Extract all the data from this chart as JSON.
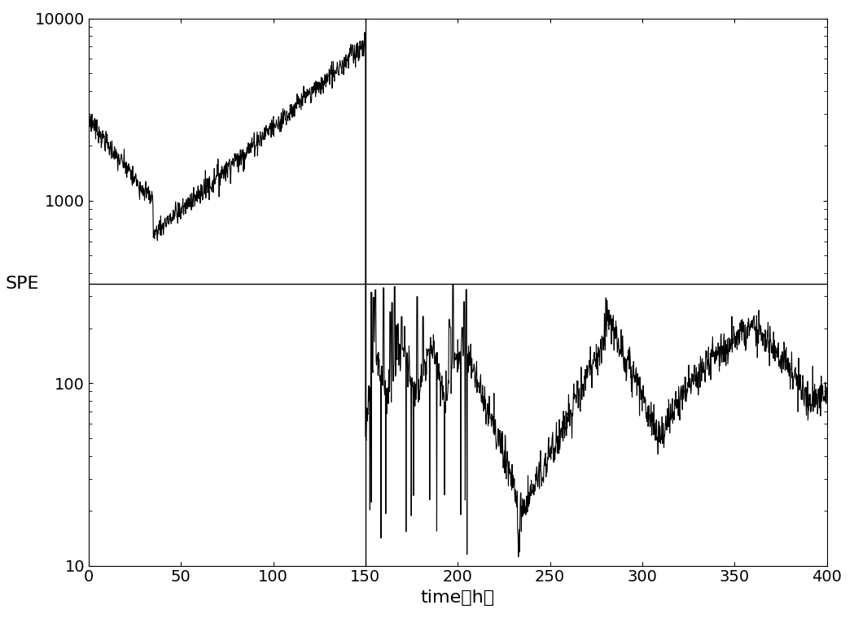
{
  "title": "",
  "xlabel": "time（h）",
  "ylabel": "SPE",
  "xlim": [
    0,
    400
  ],
  "ylim": [
    10,
    10000
  ],
  "xticks": [
    0,
    50,
    100,
    150,
    200,
    250,
    300,
    350,
    400
  ],
  "yticks": [
    10,
    100,
    1000,
    10000
  ],
  "threshold_y": 350,
  "vertical_line_x": 150,
  "line_color": "#000000",
  "background_color": "#ffffff",
  "fig_width": 10.49,
  "fig_height": 7.6,
  "dpi": 100,
  "seed": 7
}
